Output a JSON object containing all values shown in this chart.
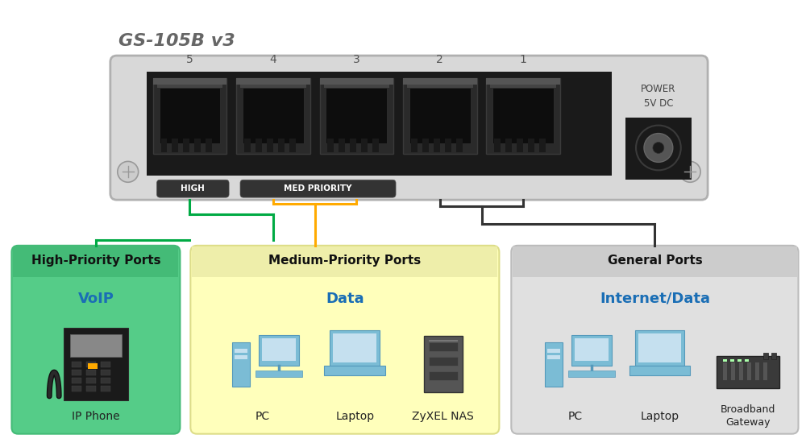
{
  "title": "GS-105B v3",
  "title_color": "#666666",
  "bg_color": "#ffffff",
  "switch_bg": "#d8d8d8",
  "switch_border": "#b0b0b0",
  "port_numbers": [
    "5",
    "4",
    "3",
    "2",
    "1"
  ],
  "power_label_1": "POWER",
  "power_label_2": "5V DC",
  "high_label": "HIGH",
  "med_label": "MED PRIORITY",
  "high_wire_color": "#00aa44",
  "med_wire_color": "#ffaa00",
  "gen_wire_color": "#333333",
  "box_high_bg": "#55cc88",
  "box_high_border": "#44bb77",
  "box_high_title_bg": "#44bb77",
  "box_med_bg": "#ffffbb",
  "box_med_border": "#dddd88",
  "box_med_title_bg": "#eeeeaa",
  "box_gen_bg": "#e0e0e0",
  "box_gen_border": "#bbbbbb",
  "box_gen_title_bg": "#cccccc",
  "box_title_high": "High-Priority Ports",
  "box_title_med": "Medium-Priority Ports",
  "box_title_gen": "General Ports",
  "box_subtitle_high": "VoIP",
  "box_subtitle_med": "Data",
  "box_subtitle_gen": "Internet/Data",
  "subtitle_color": "#1a6eb5",
  "label_color": "#222222",
  "box_title_color": "#111111",
  "port_area_color": "#1a1a1a",
  "port_bg": "#222222",
  "port_inner": "#0d0d0d",
  "screw_color": "#cccccc",
  "screw_edge": "#999999",
  "power_jack_color": "#1a1a1a",
  "label_pill_color": "#333333",
  "label_pill_text": "#ffffff"
}
